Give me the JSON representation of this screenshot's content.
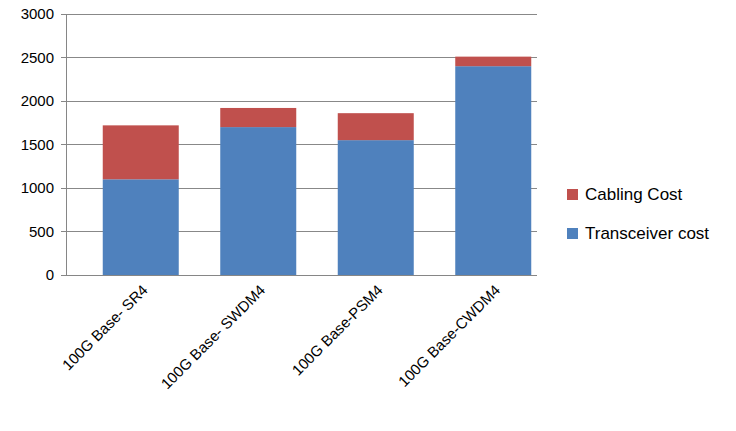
{
  "chart_data": {
    "type": "bar",
    "stacked": true,
    "categories": [
      "100G Base- SR4",
      "100G Base- SWDM4",
      "100G Base-PSM4",
      "100G Base-CWDM4"
    ],
    "series": [
      {
        "name": "Transceiver cost",
        "color": "#4f81bd",
        "values": [
          1100,
          1700,
          1550,
          2400
        ]
      },
      {
        "name": "Cabling Cost",
        "color": "#c0504d",
        "values": [
          620,
          220,
          310,
          110
        ]
      }
    ],
    "ylim": [
      0,
      3000
    ],
    "yticks": [
      0,
      500,
      1000,
      1500,
      2000,
      2500,
      3000
    ],
    "grid": true,
    "legend": "right"
  }
}
